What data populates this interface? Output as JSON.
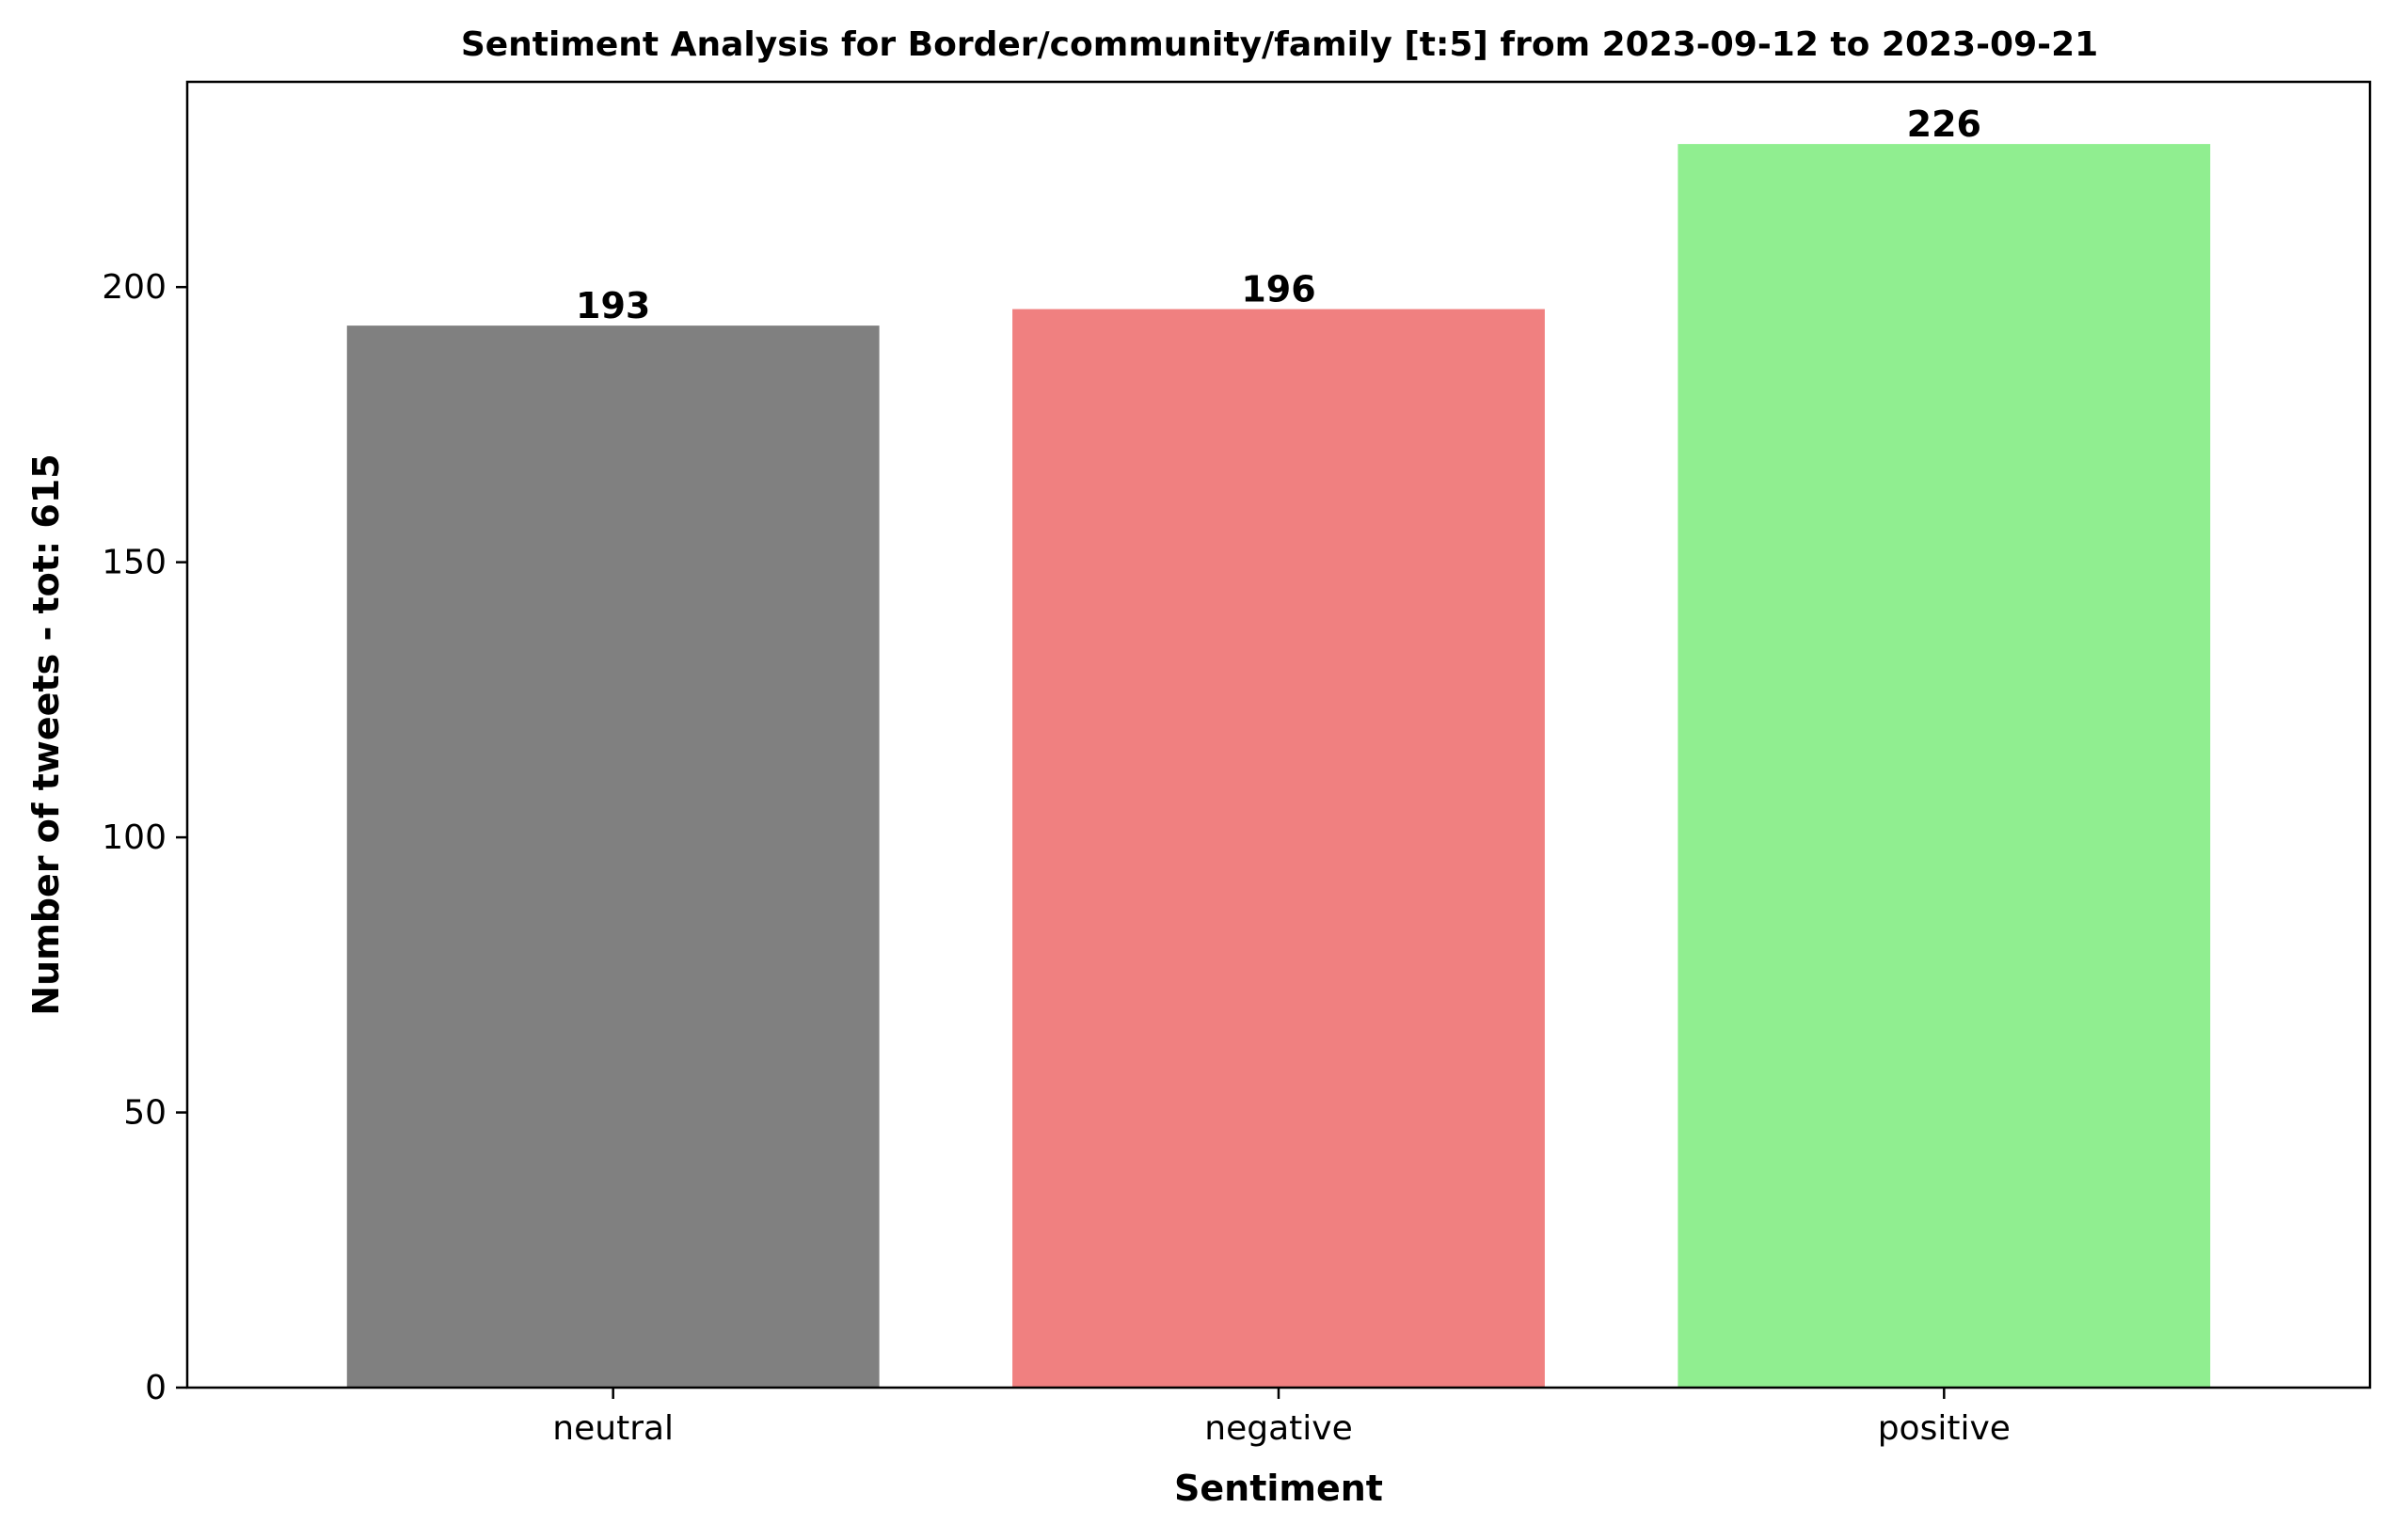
{
  "chart_data": {
    "type": "bar",
    "title": "Sentiment Analysis for Border/community/family [t:5] from 2023-09-12 to 2023-09-21",
    "xlabel": "Sentiment",
    "ylabel": "Number of tweets - tot: 615",
    "categories": [
      "neutral",
      "negative",
      "positive"
    ],
    "values": [
      193,
      196,
      226
    ],
    "colors": [
      "#808080",
      "#f08080",
      "#90ee90"
    ],
    "ylim": [
      0,
      237.3
    ],
    "yticks": [
      0,
      50,
      100,
      150,
      200
    ],
    "grid": false,
    "legend": "none"
  }
}
